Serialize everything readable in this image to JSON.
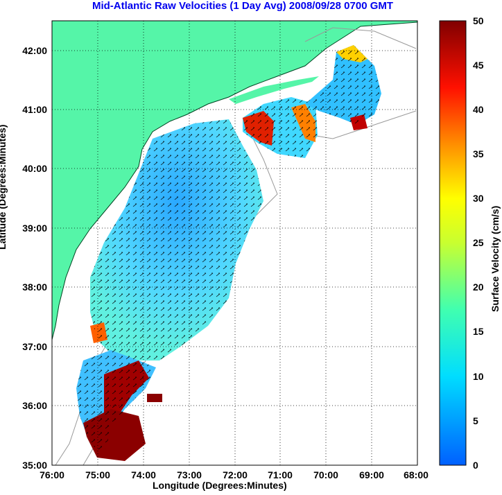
{
  "title": "Mid-Atlantic Raw Velocities (1 Day Avg) 2008/09/28 0700 GMT",
  "axes": {
    "xlabel": "Longitude (Degrees:Minutes)",
    "ylabel": "Latitude (Degrees:Minutes)",
    "xticks": [
      "76:00",
      "75:00",
      "74:00",
      "73:00",
      "72:00",
      "71:00",
      "70:00",
      "69:00",
      "68:00"
    ],
    "yticks": [
      "42:00",
      "41:00",
      "40:00",
      "39:00",
      "38:00",
      "37:00",
      "36:00",
      "35:00"
    ]
  },
  "colorbar": {
    "label": "Surface Velocity (cm/s)",
    "ticks": [
      "50",
      "45",
      "40",
      "35",
      "30",
      "25",
      "20",
      "15",
      "10",
      "5",
      "0"
    ]
  },
  "colors": {
    "land": "#55f5a8",
    "title": "#0000ee"
  }
}
